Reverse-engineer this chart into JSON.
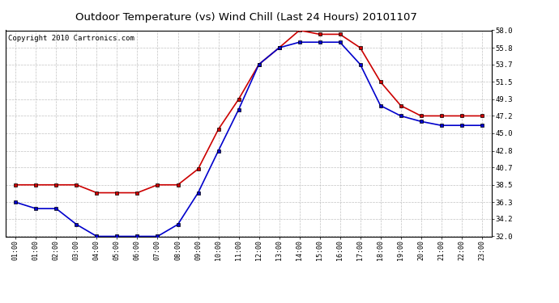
{
  "title": "Outdoor Temperature (vs) Wind Chill (Last 24 Hours) 20101107",
  "copyright": "Copyright 2010 Cartronics.com",
  "x_labels": [
    "01:00",
    "01:00",
    "02:00",
    "03:00",
    "04:00",
    "05:00",
    "06:00",
    "07:00",
    "08:00",
    "09:00",
    "10:00",
    "11:00",
    "12:00",
    "13:00",
    "14:00",
    "15:00",
    "16:00",
    "17:00",
    "18:00",
    "19:00",
    "20:00",
    "21:00",
    "22:00",
    "23:00"
  ],
  "outdoor_temp": [
    38.5,
    38.5,
    38.5,
    38.5,
    37.5,
    37.5,
    37.5,
    38.5,
    38.5,
    40.5,
    45.5,
    49.3,
    53.7,
    55.8,
    58.0,
    57.5,
    57.5,
    55.8,
    51.5,
    48.5,
    47.2,
    47.2,
    47.2,
    47.2
  ],
  "wind_chill": [
    36.3,
    35.5,
    35.5,
    33.5,
    32.0,
    32.0,
    32.0,
    32.0,
    33.5,
    37.5,
    42.8,
    48.0,
    53.7,
    55.8,
    56.5,
    56.5,
    56.5,
    53.7,
    48.5,
    47.2,
    46.5,
    46.0,
    46.0,
    46.0
  ],
  "temp_color": "#cc0000",
  "chill_color": "#0000cc",
  "marker": "s",
  "markersize": 3,
  "linewidth": 1.2,
  "background_color": "#ffffff",
  "plot_bg": "#ffffff",
  "grid_color": "#bbbbbb",
  "ylim": [
    32.0,
    58.0
  ],
  "yticks": [
    32.0,
    34.2,
    36.3,
    38.5,
    40.7,
    42.8,
    45.0,
    47.2,
    49.3,
    51.5,
    53.7,
    55.8,
    58.0
  ],
  "title_fontsize": 9.5,
  "copyright_fontsize": 6.5
}
